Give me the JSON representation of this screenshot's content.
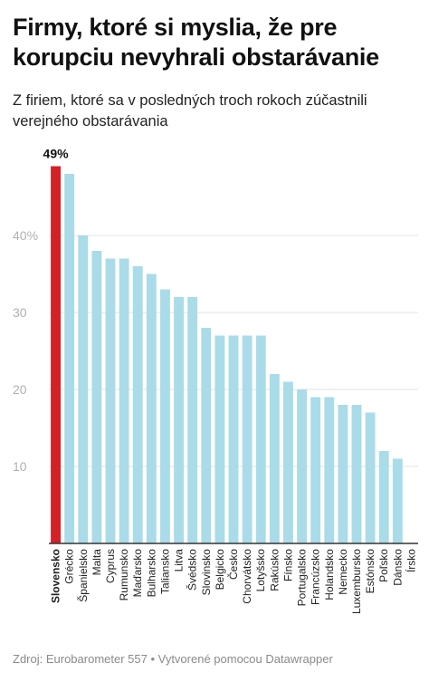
{
  "title": "Firmy, ktoré si myslia, že pre korupciu nevyhrali obstarávanie",
  "subtitle": "Z firiem, ktoré sa v posledných troch rokoch zúčastnili verejného obstarávania",
  "source": "Zdroj: Eurobarometer 557 • Vytvorené pomocou Datawrapper",
  "colors": {
    "highlight": "#d42127",
    "bar": "#aadbe8",
    "grid": "#e3e3e3",
    "tick": "#b0b0b0",
    "baseline": "#333333"
  },
  "chart_data": {
    "type": "bar",
    "categories": [
      "Slovensko",
      "Grécko",
      "Španielsko",
      "Malta",
      "Cyprus",
      "Rumunsko",
      "Maďarsko",
      "Bulharsko",
      "Taliansko",
      "Litva",
      "Švédsko",
      "Slovinsko",
      "Belgicko",
      "Česko",
      "Chorvátsko",
      "Lotyšsko",
      "Rakúsko",
      "Fínsko",
      "Portugalsko",
      "Francúzsko",
      "Holandsko",
      "Nemecko",
      "Luxembursko",
      "Estónsko",
      "Poľsko",
      "Dánsko",
      "Írsko"
    ],
    "values": [
      49,
      48,
      40,
      38,
      37,
      37,
      36,
      35,
      33,
      32,
      32,
      28,
      27,
      27,
      27,
      27,
      22,
      21,
      20,
      19,
      19,
      18,
      18,
      17,
      12,
      11,
      0
    ],
    "highlight_index": 0,
    "highlight_label": "49%",
    "yticks": [
      10,
      20,
      30,
      40
    ],
    "ytick_labels": [
      "10",
      "20",
      "30",
      "40%"
    ],
    "ylim": [
      0,
      50
    ]
  }
}
